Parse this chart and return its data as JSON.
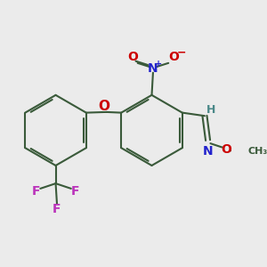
{
  "bg_color": "#ebebeb",
  "bond_color": "#3a5a3a",
  "atom_colors": {
    "O": "#cc0000",
    "N": "#2222cc",
    "F": "#bb33bb",
    "H": "#4a8888",
    "C": "#3a5a3a"
  },
  "scale": 1.0
}
